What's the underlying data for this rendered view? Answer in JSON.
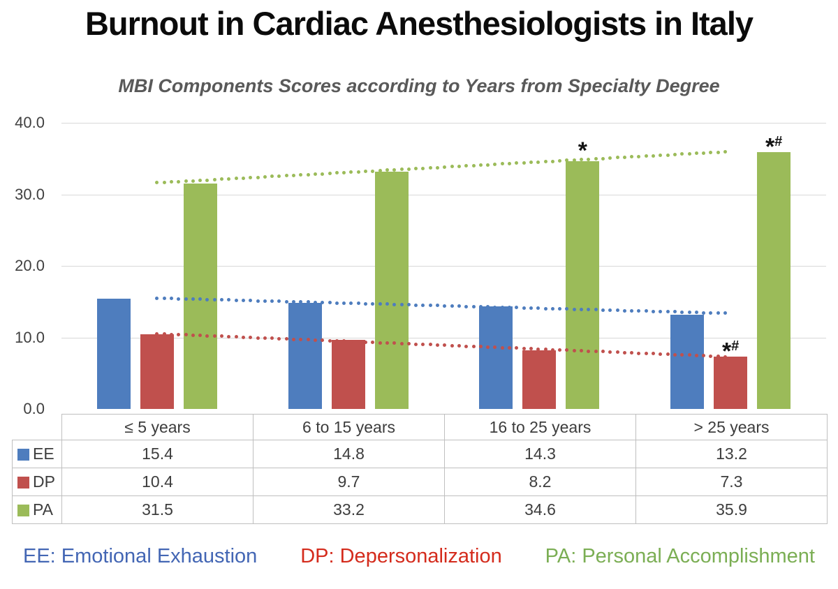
{
  "page": {
    "title": "Burnout in Cardiac Anesthesiologists in Italy"
  },
  "chart_data": {
    "type": "bar",
    "title": "MBI Components Scores according to Years from Specialty Degree",
    "categories": [
      "≤ 5 years",
      "6 to 15 years",
      "16 to 25 years",
      "> 25 years"
    ],
    "series": [
      {
        "name": "EE",
        "full_name": "Emotional Exhaustion",
        "color": "#4e7dbe",
        "values": [
          15.4,
          14.8,
          14.3,
          13.2
        ],
        "trendline": "linear-dotted"
      },
      {
        "name": "DP",
        "full_name": "Depersonalization",
        "color": "#c0504d",
        "values": [
          10.4,
          9.7,
          8.2,
          7.3
        ],
        "trendline": "linear-dotted"
      },
      {
        "name": "PA",
        "full_name": "Personal Accomplishment",
        "color": "#9bbb59",
        "values": [
          31.5,
          33.2,
          34.6,
          35.9
        ],
        "trendline": "linear-dotted"
      }
    ],
    "ylim": [
      0,
      40
    ],
    "yticks": [
      {
        "label": "0.0",
        "value": 0
      },
      {
        "label": "10.0",
        "value": 10
      },
      {
        "label": "20.0",
        "value": 20
      },
      {
        "label": "30.0",
        "value": 30
      },
      {
        "label": "40.0",
        "value": 40
      }
    ],
    "grid": "horizontal",
    "legend_position": "bottom",
    "annotations": [
      {
        "series": "PA",
        "category_index": 2,
        "text": "*",
        "superscript": ""
      },
      {
        "series": "PA",
        "category_index": 3,
        "text": "*",
        "superscript": "#"
      },
      {
        "series": "DP",
        "category_index": 3,
        "text": "*",
        "superscript": "#"
      }
    ]
  },
  "legend": {
    "items": [
      {
        "abbr": "EE",
        "text": "EE: Emotional Exhaustion",
        "color": "#4366b4"
      },
      {
        "abbr": "DP",
        "text": "DP: Depersonalization",
        "color": "#d42b1c"
      },
      {
        "abbr": "PA",
        "text": "PA: Personal Accomplishment",
        "color": "#7bae54"
      }
    ]
  }
}
